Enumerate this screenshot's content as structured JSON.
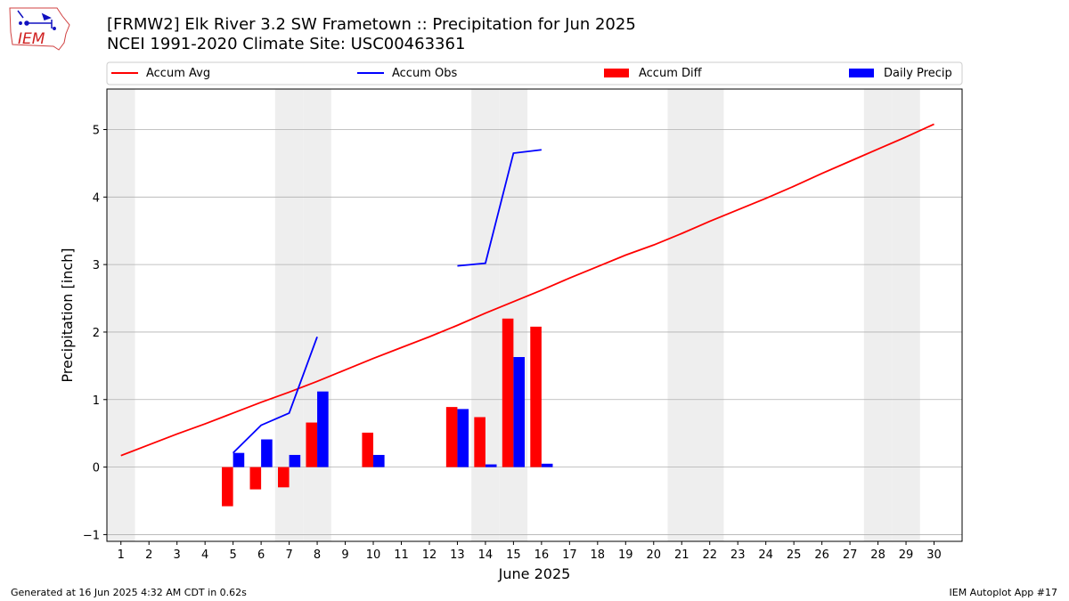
{
  "logo": {
    "text": "IEM"
  },
  "header": {
    "title_line1": "[FRMW2] Elk River 3.2 SW Frametown :: Precipitation for Jun 2025",
    "title_line2": "NCEI 1991-2020 Climate Site: USC00463361"
  },
  "footer": {
    "generated": "Generated at 16 Jun 2025 4:32 AM CDT in 0.62s",
    "app": "IEM Autoplot App #17"
  },
  "colors": {
    "avg": "#ff0000",
    "obs": "#0000ff",
    "diff": "#ff0000",
    "daily": "#0000ff",
    "weekend": "#eeeeee",
    "grid": "#b0b0b0"
  },
  "chart_data": {
    "type": "bar",
    "xlabel": "June 2025",
    "ylabel": "Precipitation [inch]",
    "xlim": [
      0.5,
      31
    ],
    "ylim": [
      -1.1,
      5.6
    ],
    "x_ticks": [
      1,
      2,
      3,
      4,
      5,
      6,
      7,
      8,
      9,
      10,
      11,
      12,
      13,
      14,
      15,
      16,
      17,
      18,
      19,
      20,
      21,
      22,
      23,
      24,
      25,
      26,
      27,
      28,
      29,
      30
    ],
    "y_ticks": [
      -1,
      0,
      1,
      2,
      3,
      4,
      5
    ],
    "grid": "horizontal",
    "legend_position": "top",
    "weekend_days": [
      1,
      7,
      8,
      14,
      15,
      21,
      22,
      28,
      29
    ],
    "legend": [
      {
        "label": "Accum Avg",
        "kind": "line",
        "color": "#ff0000"
      },
      {
        "label": "Accum Obs",
        "kind": "line",
        "color": "#0000ff"
      },
      {
        "label": "Accum Diff",
        "kind": "bar",
        "color": "#ff0000"
      },
      {
        "label": "Daily Precip",
        "kind": "bar",
        "color": "#0000ff"
      }
    ],
    "series": [
      {
        "name": "Accum Avg",
        "type": "line",
        "x": [
          1,
          2,
          3,
          4,
          5,
          6,
          7,
          8,
          9,
          10,
          11,
          12,
          13,
          14,
          15,
          16,
          17,
          18,
          19,
          20,
          21,
          22,
          23,
          24,
          25,
          26,
          27,
          28,
          29,
          30
        ],
        "values": [
          0.17,
          0.33,
          0.49,
          0.64,
          0.8,
          0.96,
          1.11,
          1.27,
          1.44,
          1.61,
          1.77,
          1.93,
          2.1,
          2.28,
          2.45,
          2.62,
          2.8,
          2.97,
          3.14,
          3.29,
          3.46,
          3.64,
          3.81,
          3.98,
          4.16,
          4.35,
          4.53,
          4.71,
          4.89,
          5.08
        ]
      },
      {
        "name": "Accum Obs",
        "type": "line",
        "segments": [
          {
            "x": [
              5,
              6,
              7,
              8
            ],
            "values": [
              0.21,
              0.62,
              0.8,
              1.93
            ]
          },
          {
            "x": [
              13,
              14,
              15,
              16
            ],
            "values": [
              2.98,
              3.02,
              4.65,
              4.7
            ]
          }
        ]
      },
      {
        "name": "Accum Diff",
        "type": "bar",
        "x": [
          5,
          6,
          7,
          8,
          10,
          13,
          14,
          15,
          16
        ],
        "values": [
          -0.58,
          -0.33,
          -0.3,
          0.66,
          0.51,
          0.89,
          0.74,
          2.2,
          2.08
        ]
      },
      {
        "name": "Daily Precip",
        "type": "bar",
        "x": [
          5,
          6,
          7,
          8,
          10,
          13,
          14,
          15,
          16
        ],
        "values": [
          0.21,
          0.41,
          0.18,
          1.12,
          0.18,
          0.86,
          0.04,
          1.63,
          0.05
        ]
      }
    ]
  }
}
